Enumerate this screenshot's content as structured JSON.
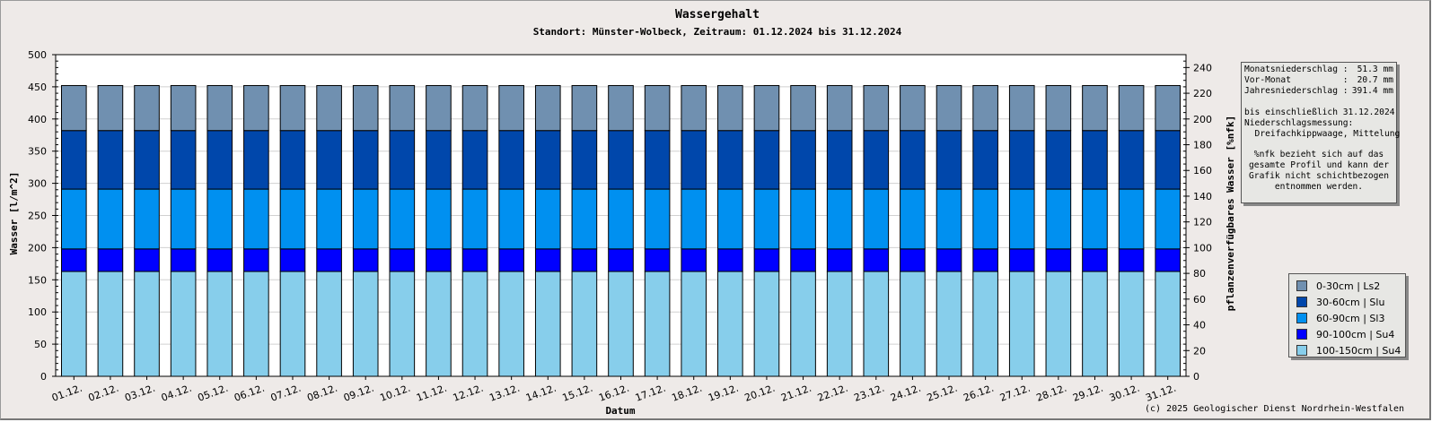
{
  "chart_data": {
    "type": "bar",
    "stacked": true,
    "title": "Wassergehalt",
    "subtitle": "Standort: Münster-Wolbeck, Zeitraum: 01.12.2024 bis 31.12.2024",
    "xlabel": "Datum",
    "ylabel": "Wasser [l/m^2]",
    "y2label": "pflanzenverfügbares Wasser [%nfk]",
    "ylim": [
      0,
      500
    ],
    "y2lim": [
      0,
      250
    ],
    "yticks": [
      0,
      50,
      100,
      150,
      200,
      250,
      300,
      350,
      400,
      450,
      500
    ],
    "y2ticks": [
      0,
      20,
      40,
      60,
      80,
      100,
      120,
      140,
      160,
      180,
      200,
      220,
      240
    ],
    "grid": true,
    "legend_position": "right",
    "categories": [
      "01.12.",
      "02.12.",
      "03.12.",
      "04.12.",
      "05.12.",
      "06.12.",
      "07.12.",
      "08.12.",
      "09.12.",
      "10.12.",
      "11.12.",
      "12.12.",
      "13.12.",
      "14.12.",
      "15.12.",
      "16.12.",
      "17.12.",
      "18.12.",
      "19.12.",
      "20.12.",
      "21.12.",
      "22.12.",
      "23.12.",
      "24.12.",
      "25.12.",
      "26.12.",
      "27.12.",
      "28.12.",
      "29.12.",
      "30.12.",
      "31.12."
    ],
    "series": [
      {
        "name": "100-150cm | Su4",
        "color": "#87ceeb",
        "values": [
          163,
          163,
          163,
          163,
          163,
          163,
          163,
          163,
          163,
          163,
          163,
          163,
          163,
          163,
          163,
          163,
          163,
          163,
          163,
          163,
          163,
          163,
          163,
          163,
          163,
          163,
          163,
          163,
          163,
          163,
          163
        ]
      },
      {
        "name": "90-100cm | Su4",
        "color": "#0000ff",
        "values": [
          35,
          35,
          35,
          35,
          35,
          35,
          35,
          35,
          35,
          35,
          35,
          35,
          35,
          35,
          35,
          35,
          35,
          35,
          35,
          35,
          35,
          35,
          35,
          35,
          35,
          35,
          35,
          35,
          35,
          35,
          35
        ]
      },
      {
        "name": "60-90cm | Sl3",
        "color": "#0090f0",
        "values": [
          93,
          93,
          93,
          93,
          93,
          93,
          93,
          93,
          93,
          93,
          93,
          93,
          93,
          93,
          93,
          93,
          93,
          93,
          93,
          93,
          93,
          93,
          93,
          93,
          93,
          93,
          93,
          93,
          93,
          93,
          93
        ]
      },
      {
        "name": "30-60cm | Slu",
        "color": "#0047ab",
        "values": [
          91,
          91,
          91,
          91,
          91,
          91,
          91,
          91,
          91,
          91,
          91,
          91,
          91,
          91,
          91,
          91,
          91,
          91,
          91,
          91,
          91,
          91,
          91,
          91,
          91,
          91,
          91,
          91,
          91,
          91,
          91
        ]
      },
      {
        "name": "0-30cm | Ls2",
        "color": "#7090b0",
        "values": [
          70,
          70,
          70,
          70,
          70,
          70,
          70,
          70,
          70,
          70,
          70,
          70,
          70,
          70,
          70,
          70,
          70,
          70,
          70,
          70,
          70,
          70,
          70,
          70,
          70,
          70,
          70,
          70,
          70,
          70,
          70
        ]
      }
    ],
    "legend_order": [
      "0-30cm | Ls2",
      "30-60cm | Slu",
      "60-90cm | Sl3",
      "90-100cm | Su4",
      "100-150cm | Su4"
    ]
  },
  "info": {
    "monthly_label": "Monatsniederschlag :",
    "monthly_value": "51.3 mm",
    "prev_label": "Vor-Monat          :",
    "prev_value": "20.7 mm",
    "yearly_label": "Jahresniederschlag :",
    "yearly_value": "391.4 mm",
    "date_line": "bis einschließlich 31.12.2024",
    "measure_line1": "Niederschlagsmessung:",
    "measure_line2": "  Dreifachkippwaage, Mittelung",
    "note": "%nfk bezieht sich auf das gesamte Profil und kann der Grafik nicht schichtbezogen entnommen werden."
  },
  "copyright": "(c) 2025 Geologischer Dienst Nordrhein-Westfalen"
}
